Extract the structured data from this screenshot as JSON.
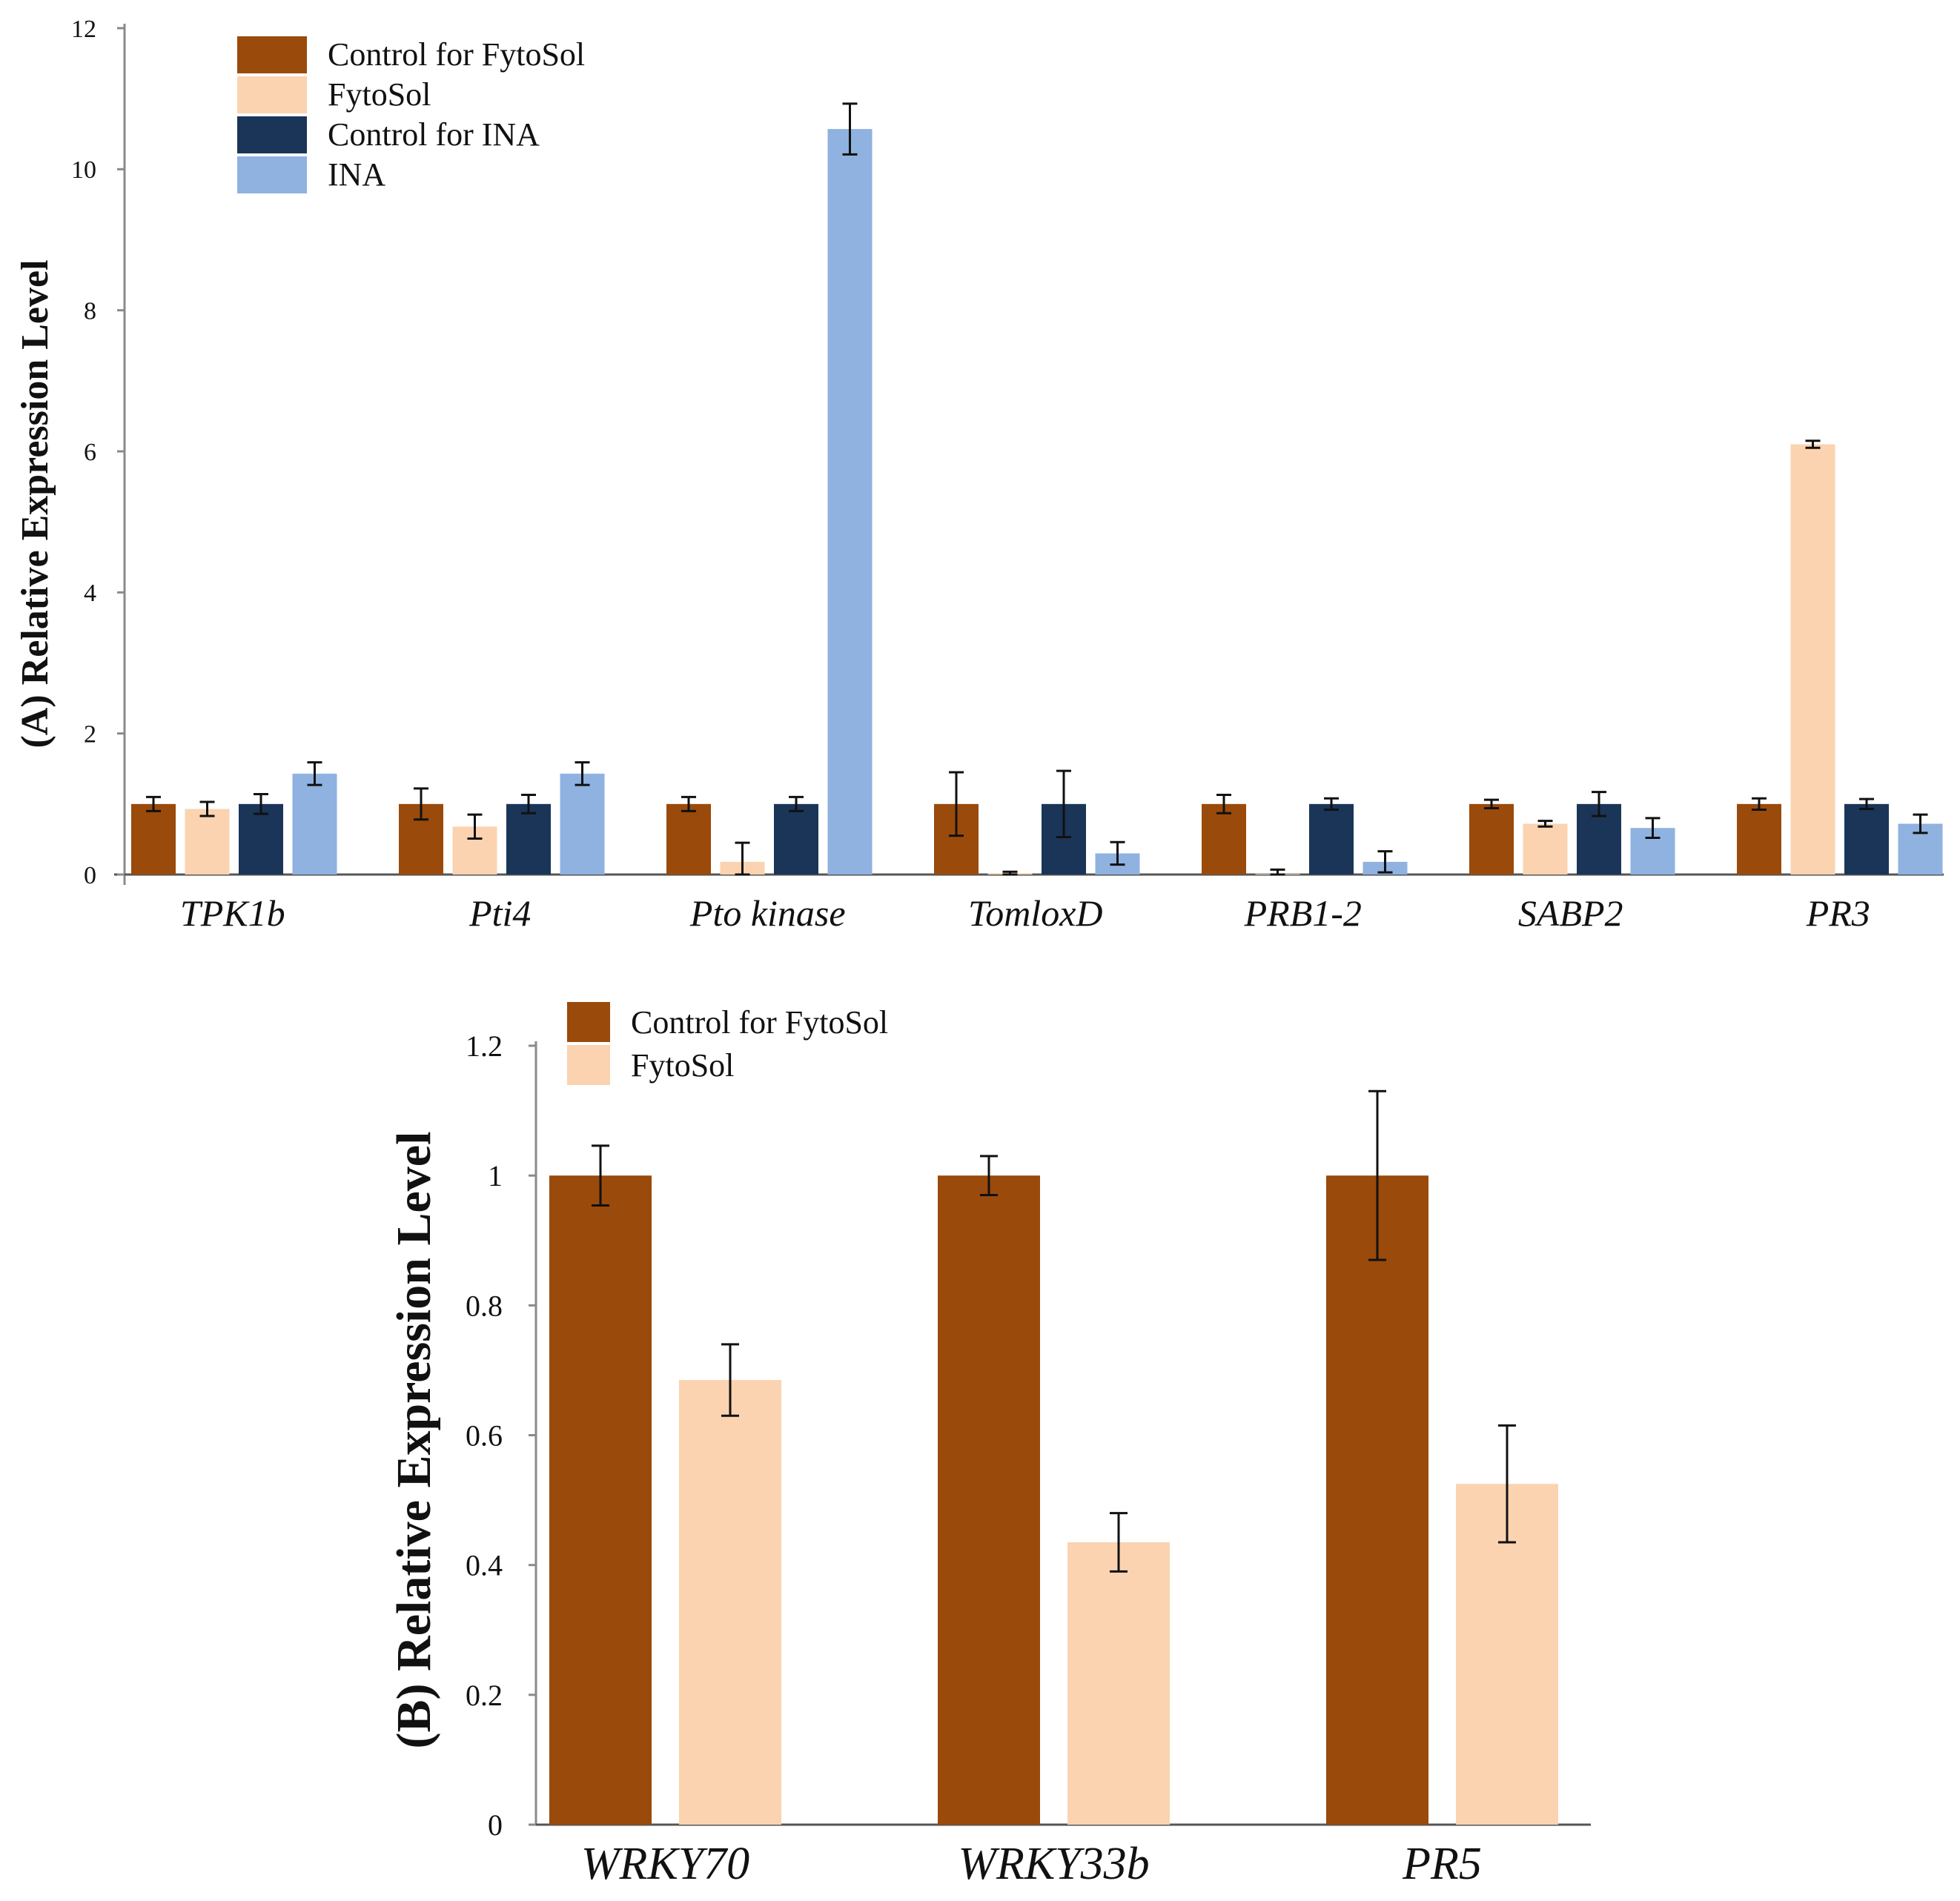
{
  "colors": {
    "control_fytosol": "#9a4a0b",
    "fytosol": "#fbd3b0",
    "control_ina": "#1a3558",
    "ina": "#8fb2e0",
    "axis": "#8a8a8a",
    "error": "#111111"
  },
  "chart_data": [
    {
      "type": "bar",
      "panel": "A",
      "title": "",
      "xlabel": "",
      "ylabel": "(A) Relative Expression Level",
      "ylim": [
        0,
        12
      ],
      "yticks": [
        "0",
        "2",
        "4",
        "6",
        "8",
        "10",
        "12"
      ],
      "grid": false,
      "legend_position": "top-left",
      "categories": [
        "TPK1b",
        "Pti4",
        "Pto kinase",
        "TomloxD",
        "PRB1-2",
        "SABP2",
        "PR3"
      ],
      "series": [
        {
          "name": "Control for FytoSol",
          "color_key": "control_fytosol",
          "values": [
            1,
            1,
            1,
            1,
            1,
            1,
            1
          ],
          "errors": [
            0.1,
            0.22,
            0.1,
            0.45,
            0.13,
            0.06,
            0.08
          ]
        },
        {
          "name": "FytoSol",
          "color_key": "fytosol",
          "values": [
            0.93,
            0.68,
            0.18,
            0.02,
            0.01,
            0.72,
            6.1
          ],
          "errors": [
            0.1,
            0.17,
            0.27,
            0.02,
            0.06,
            0.04,
            0.05
          ]
        },
        {
          "name": "Control for INA",
          "color_key": "control_ina",
          "values": [
            1,
            1,
            1,
            1,
            1,
            1,
            1
          ],
          "errors": [
            0.14,
            0.13,
            0.1,
            0.47,
            0.08,
            0.17,
            0.07
          ]
        },
        {
          "name": "INA",
          "color_key": "ina",
          "values": [
            1.43,
            1.43,
            10.57,
            0.3,
            0.18,
            0.66,
            0.72
          ],
          "errors": [
            0.16,
            0.16,
            0.36,
            0.16,
            0.15,
            0.14,
            0.13
          ]
        }
      ]
    },
    {
      "type": "bar",
      "panel": "B",
      "title": "",
      "xlabel": "",
      "ylabel": "(B) Relative Expression Level",
      "ylim": [
        0,
        1.2
      ],
      "yticks": [
        "0",
        "0.2",
        "0.4",
        "0.6",
        "0.8",
        "1",
        "1.2"
      ],
      "grid": false,
      "legend_position": "top-left",
      "categories": [
        "WRKY70",
        "WRKY33b",
        "PR5"
      ],
      "series": [
        {
          "name": "Control for FytoSol",
          "color_key": "control_fytosol",
          "values": [
            1,
            1,
            1
          ],
          "errors": [
            0.046,
            0.03,
            0.13
          ]
        },
        {
          "name": "FytoSol",
          "color_key": "fytosol",
          "values": [
            0.685,
            0.435,
            0.525
          ],
          "errors": [
            0.055,
            0.045,
            0.09
          ]
        }
      ]
    }
  ]
}
